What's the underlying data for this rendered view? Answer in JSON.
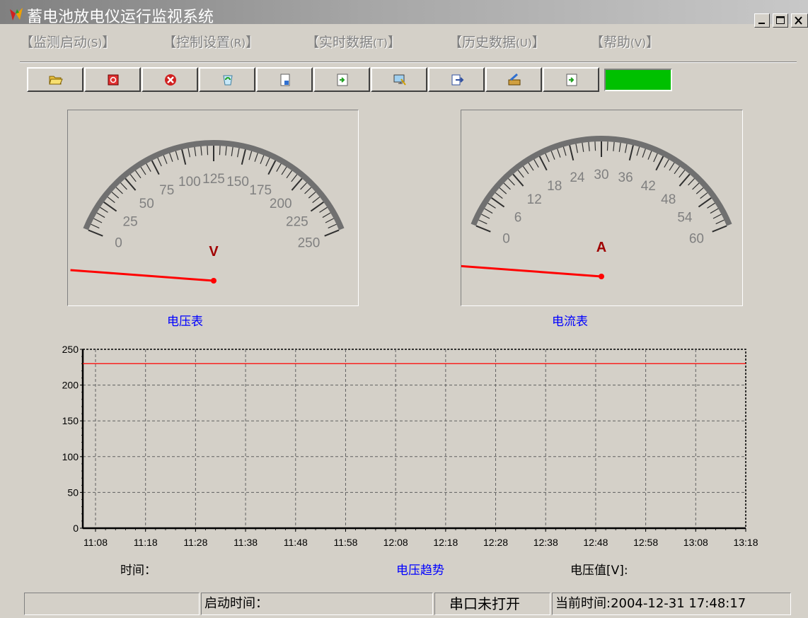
{
  "window": {
    "title": "蓄电池放电仪运行监视系统",
    "controls": [
      "minimize-icon",
      "maximize-icon",
      "close-icon"
    ]
  },
  "menu": [
    {
      "label": "【监测启动",
      "hotkey": "(S)",
      "tail": "】"
    },
    {
      "label": "【控制设置",
      "hotkey": "(R)",
      "tail": "】"
    },
    {
      "label": "【实时数据",
      "hotkey": "(T)",
      "tail": "】"
    },
    {
      "label": "【历史数据",
      "hotkey": "(U)",
      "tail": "】"
    },
    {
      "label": "【帮助",
      "hotkey": "(V)",
      "tail": "】"
    }
  ],
  "toolbar": {
    "icons": [
      "open-folder-icon",
      "stop-icon",
      "cancel-icon",
      "recycle-icon",
      "save-icon",
      "import-icon",
      "monitor-icon",
      "export-icon",
      "settings-icon",
      "document-icon"
    ],
    "status_color": "#00c000"
  },
  "voltmeter": {
    "caption": "电压表",
    "unit": "V",
    "ticks": [
      "0",
      "25",
      "50",
      "75",
      "100",
      "125",
      "150",
      "175",
      "200",
      "225",
      "250"
    ],
    "max": 250,
    "needle_value": 0
  },
  "ammeter": {
    "caption": "电流表",
    "unit": "A",
    "ticks": [
      "0",
      "6",
      "12",
      "18",
      "24",
      "30",
      "36",
      "42",
      "48",
      "54",
      "60"
    ],
    "max": 60,
    "needle_value": 0
  },
  "chart_data": {
    "type": "line",
    "title": "电压趋势",
    "xlabel": "时间：",
    "ylabel": "电压值[V]:",
    "x": [
      "11:08",
      "11:18",
      "11:28",
      "11:38",
      "11:48",
      "11:58",
      "12:08",
      "12:18",
      "12:28",
      "12:38",
      "12:48",
      "12:58",
      "13:08",
      "13:18"
    ],
    "y_ticks": [
      "0",
      "50",
      "100",
      "150",
      "200",
      "250"
    ],
    "ylim": [
      0,
      250
    ],
    "series": [
      {
        "values": [
          230,
          230,
          230,
          230,
          230,
          230,
          230,
          230,
          230,
          230,
          230,
          230,
          230,
          230
        ],
        "color": "#ff0000"
      }
    ],
    "grid": true
  },
  "statusbar": {
    "panel1": "",
    "start_time": "启动时间：",
    "port_status": "串口未打开",
    "current_time": "当前时间:2004-12-31 17:48:17"
  }
}
